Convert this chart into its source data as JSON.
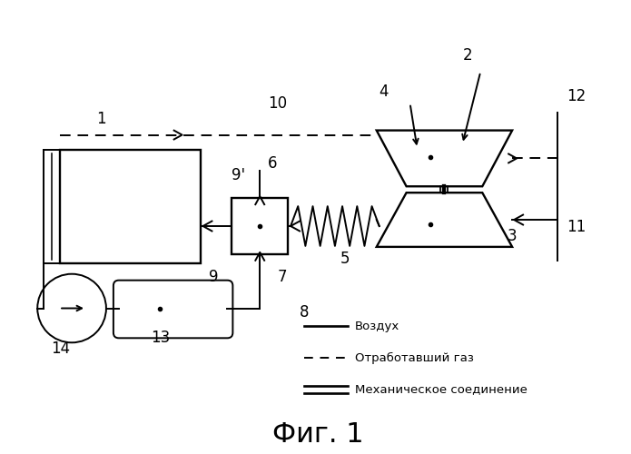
{
  "bg_color": "#ffffff",
  "line_color": "#000000",
  "title": "Фиг. 1",
  "legend_air": "Воздух",
  "legend_exhaust": "Отработавший газ",
  "legend_mech": "Механическое соединение"
}
